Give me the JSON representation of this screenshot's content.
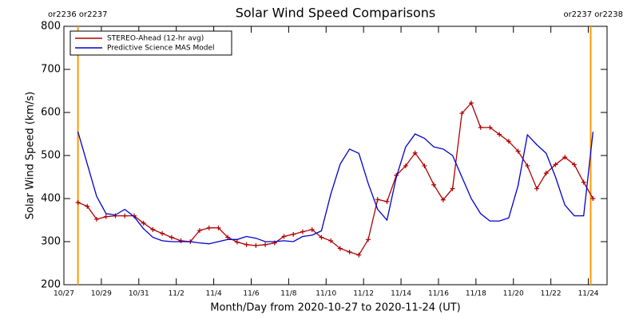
{
  "chart_data": {
    "type": "line",
    "title": "Solar Wind Speed Comparisons",
    "xlabel": "Month/Day from 2020-10-27 to 2020-11-24 (UT)",
    "ylabel": "Solar Wind Speed (km/s)",
    "xlim": [
      "2020-10-27T00:00",
      "2020-11-25T00:00"
    ],
    "xticks": [
      {
        "value": "2020-10-27T00:00",
        "label": "10/27"
      },
      {
        "value": "2020-10-29T00:00",
        "label": "10/29"
      },
      {
        "value": "2020-10-31T00:00",
        "label": "10/31"
      },
      {
        "value": "2020-11-02T00:00",
        "label": "11/2"
      },
      {
        "value": "2020-11-04T00:00",
        "label": "11/4"
      },
      {
        "value": "2020-11-06T00:00",
        "label": "11/6"
      },
      {
        "value": "2020-11-08T00:00",
        "label": "11/8"
      },
      {
        "value": "2020-11-10T00:00",
        "label": "11/10"
      },
      {
        "value": "2020-11-12T00:00",
        "label": "11/12"
      },
      {
        "value": "2020-11-14T00:00",
        "label": "11/14"
      },
      {
        "value": "2020-11-16T00:00",
        "label": "11/16"
      },
      {
        "value": "2020-11-18T00:00",
        "label": "11/18"
      },
      {
        "value": "2020-11-20T00:00",
        "label": "11/20"
      },
      {
        "value": "2020-11-22T00:00",
        "label": "11/22"
      },
      {
        "value": "2020-11-24T00:00",
        "label": "11/24"
      }
    ],
    "ylim": [
      200,
      800
    ],
    "yticks": [
      200,
      300,
      400,
      500,
      600,
      700,
      800
    ],
    "legend": "upper left",
    "x": [
      "2020-10-27T18:00",
      "2020-10-28T06:00",
      "2020-10-28T18:00",
      "2020-10-29T06:00",
      "2020-10-29T18:00",
      "2020-10-30T06:00",
      "2020-10-30T18:00",
      "2020-10-31T06:00",
      "2020-10-31T18:00",
      "2020-11-01T06:00",
      "2020-11-01T18:00",
      "2020-11-02T06:00",
      "2020-11-02T18:00",
      "2020-11-03T06:00",
      "2020-11-03T18:00",
      "2020-11-04T06:00",
      "2020-11-04T18:00",
      "2020-11-05T06:00",
      "2020-11-05T18:00",
      "2020-11-06T06:00",
      "2020-11-06T18:00",
      "2020-11-07T06:00",
      "2020-11-07T18:00",
      "2020-11-08T06:00",
      "2020-11-08T18:00",
      "2020-11-09T06:00",
      "2020-11-09T18:00",
      "2020-11-10T06:00",
      "2020-11-10T18:00",
      "2020-11-11T06:00",
      "2020-11-11T18:00",
      "2020-11-12T06:00",
      "2020-11-12T18:00",
      "2020-11-13T06:00",
      "2020-11-13T18:00",
      "2020-11-14T06:00",
      "2020-11-14T18:00",
      "2020-11-15T06:00",
      "2020-11-15T18:00",
      "2020-11-16T06:00",
      "2020-11-16T18:00",
      "2020-11-17T06:00",
      "2020-11-17T18:00",
      "2020-11-18T06:00",
      "2020-11-18T18:00",
      "2020-11-19T06:00",
      "2020-11-19T18:00",
      "2020-11-20T06:00",
      "2020-11-20T18:00",
      "2020-11-21T06:00",
      "2020-11-21T18:00",
      "2020-11-22T06:00",
      "2020-11-22T18:00",
      "2020-11-23T06:00",
      "2020-11-23T18:00",
      "2020-11-24T06:00"
    ],
    "series": [
      {
        "name": "STEREO-Ahead (12-hr avg)",
        "color": "#b00000",
        "marker": "+",
        "values": [
          391,
          382,
          352,
          358,
          360,
          360,
          360,
          343,
          328,
          319,
          310,
          302,
          300,
          326,
          332,
          332,
          310,
          299,
          293,
          291,
          293,
          297,
          312,
          317,
          323,
          328,
          310,
          302,
          284,
          276,
          269,
          305,
          398,
          393,
          454,
          476,
          506,
          476,
          432,
          397,
          423,
          598,
          622,
          565,
          565,
          549,
          533,
          510,
          476,
          423,
          459,
          479,
          496,
          479,
          438,
          400
        ]
      },
      {
        "name": "Predictive Science MAS Model",
        "color": "#0000cc",
        "values": [
          555,
          480,
          405,
          365,
          362,
          375,
          358,
          330,
          310,
          302,
          300,
          300,
          300,
          297,
          295,
          300,
          305,
          305,
          312,
          308,
          300,
          300,
          302,
          300,
          312,
          315,
          325,
          410,
          480,
          515,
          505,
          435,
          375,
          350,
          450,
          520,
          550,
          540,
          520,
          515,
          500,
          450,
          400,
          365,
          348,
          348,
          355,
          430,
          548,
          525,
          505,
          450,
          385,
          360,
          360,
          555
        ]
      }
    ],
    "annotations": [
      {
        "text": "or2236 or2237",
        "x": "2020-10-27T18:00",
        "color": "#ff9900",
        "side": "left"
      },
      {
        "text": "or2237 or2238",
        "x": "2020-11-24T03:00",
        "color": "#ff9900",
        "side": "right"
      }
    ]
  }
}
